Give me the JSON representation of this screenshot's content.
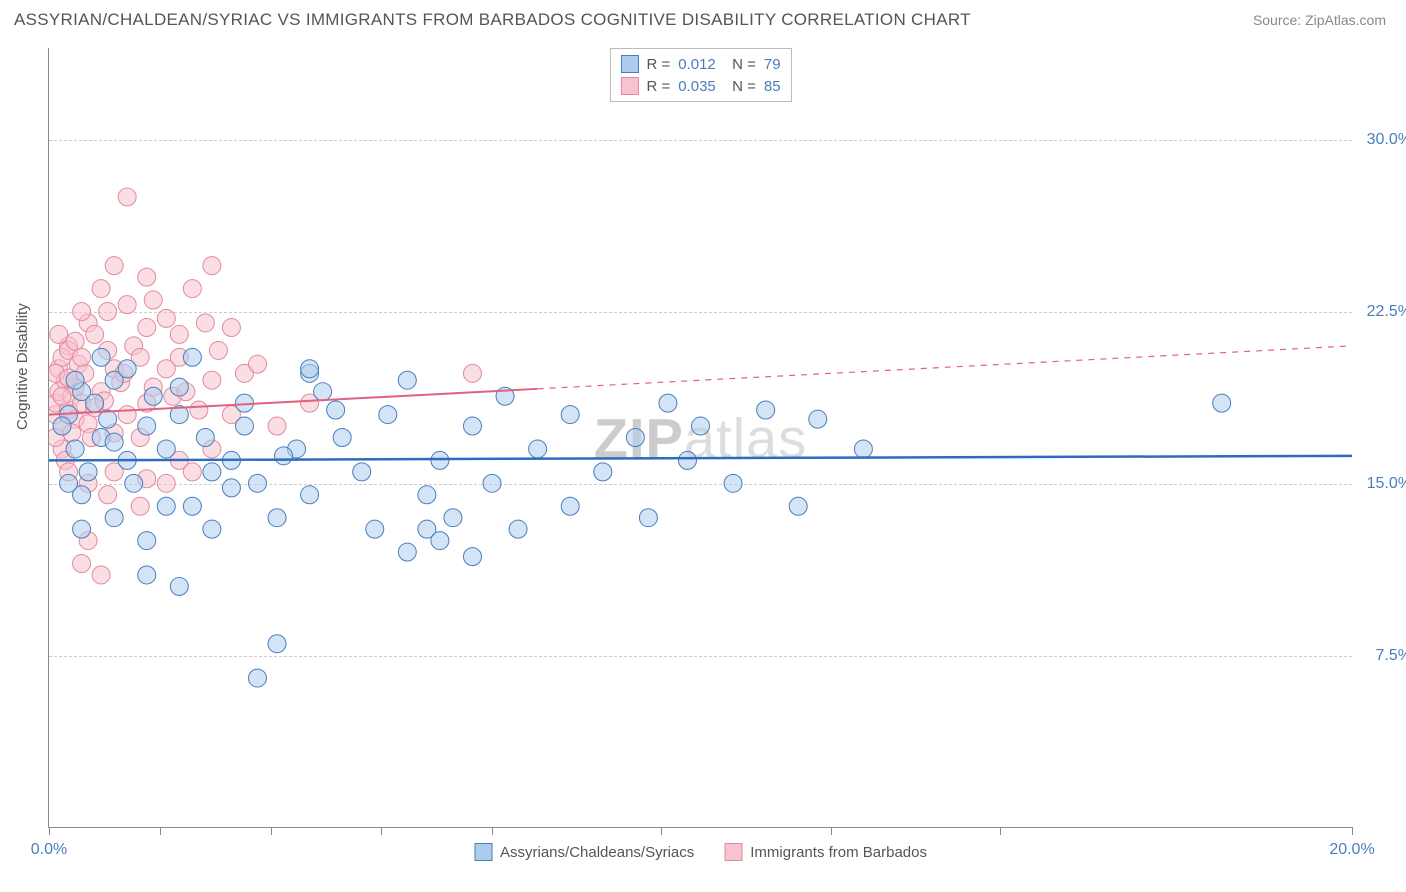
{
  "header": {
    "title": "ASSYRIAN/CHALDEAN/SYRIAC VS IMMIGRANTS FROM BARBADOS COGNITIVE DISABILITY CORRELATION CHART",
    "source": "Source: ZipAtlas.com"
  },
  "chart": {
    "type": "scatter",
    "ylabel": "Cognitive Disability",
    "background_color": "#ffffff",
    "grid_color": "#cccccc",
    "axis_color": "#888888",
    "label_color": "#555555",
    "tick_label_color": "#4a7ebb",
    "title_fontsize": 17,
    "label_fontsize": 15,
    "tick_fontsize": 16,
    "xlim": [
      0,
      20
    ],
    "ylim": [
      0,
      34
    ],
    "xtick_positions_pct": [
      0,
      8.5,
      17,
      25.5,
      34,
      47,
      60,
      73,
      100
    ],
    "xtick_labels": {
      "0": "0.0%",
      "100": "20.0%"
    },
    "yticks": [
      {
        "value": 7.5,
        "label": "7.5%"
      },
      {
        "value": 15.0,
        "label": "15.0%"
      },
      {
        "value": 22.5,
        "label": "22.5%"
      },
      {
        "value": 30.0,
        "label": "30.0%"
      }
    ],
    "watermark": {
      "prefix": "ZIP",
      "suffix": "atlas"
    },
    "series": [
      {
        "name": "Assyrians/Chaldeans/Syriacs",
        "fill_color": "#aecdee",
        "stroke_color": "#4a7ebb",
        "fill_opacity": 0.55,
        "marker_radius": 9,
        "R": "0.012",
        "N": "79",
        "trend": {
          "y_start": 16.0,
          "y_end": 16.2,
          "solid_until_x": 20,
          "color": "#2e6bbd",
          "width": 2.5
        },
        "points": [
          [
            0.3,
            18.0
          ],
          [
            0.2,
            17.5
          ],
          [
            0.5,
            19.0
          ],
          [
            0.4,
            16.5
          ],
          [
            0.6,
            15.5
          ],
          [
            0.8,
            17.0
          ],
          [
            0.5,
            14.5
          ],
          [
            0.7,
            18.5
          ],
          [
            1.0,
            19.5
          ],
          [
            1.2,
            16.0
          ],
          [
            1.5,
            17.5
          ],
          [
            1.0,
            13.5
          ],
          [
            1.3,
            15.0
          ],
          [
            1.8,
            16.5
          ],
          [
            2.0,
            18.0
          ],
          [
            2.2,
            14.0
          ],
          [
            2.5,
            15.5
          ],
          [
            2.0,
            19.2
          ],
          [
            2.4,
            17.0
          ],
          [
            2.8,
            16.0
          ],
          [
            3.0,
            18.5
          ],
          [
            1.5,
            12.5
          ],
          [
            1.8,
            14.0
          ],
          [
            3.2,
            15.0
          ],
          [
            3.5,
            13.5
          ],
          [
            3.0,
            17.5
          ],
          [
            3.8,
            16.5
          ],
          [
            4.0,
            14.5
          ],
          [
            4.2,
            19.0
          ],
          [
            4.5,
            17.0
          ],
          [
            1.2,
            20.0
          ],
          [
            0.8,
            20.5
          ],
          [
            4.8,
            15.5
          ],
          [
            5.0,
            13.0
          ],
          [
            5.2,
            18.0
          ],
          [
            5.5,
            19.5
          ],
          [
            5.8,
            14.5
          ],
          [
            6.0,
            16.0
          ],
          [
            4.0,
            19.8
          ],
          [
            6.2,
            13.5
          ],
          [
            6.5,
            17.5
          ],
          [
            6.8,
            15.0
          ],
          [
            7.0,
            18.8
          ],
          [
            5.5,
            12.0
          ],
          [
            5.8,
            13.0
          ],
          [
            6.0,
            12.5
          ],
          [
            3.5,
            8.0
          ],
          [
            3.2,
            6.5
          ],
          [
            2.0,
            10.5
          ],
          [
            1.5,
            11.0
          ],
          [
            2.5,
            13.0
          ],
          [
            1.0,
            16.8
          ],
          [
            0.5,
            13.0
          ],
          [
            0.3,
            15.0
          ],
          [
            2.2,
            20.5
          ],
          [
            4.0,
            20.0
          ],
          [
            7.5,
            16.5
          ],
          [
            8.0,
            18.0
          ],
          [
            8.5,
            15.5
          ],
          [
            9.0,
            17.0
          ],
          [
            9.5,
            18.5
          ],
          [
            9.8,
            16.0
          ],
          [
            10.0,
            17.5
          ],
          [
            10.5,
            15.0
          ],
          [
            11.0,
            18.2
          ],
          [
            11.5,
            14.0
          ],
          [
            11.8,
            17.8
          ],
          [
            12.5,
            16.5
          ],
          [
            9.2,
            13.5
          ],
          [
            8.0,
            14.0
          ],
          [
            7.2,
            13.0
          ],
          [
            6.5,
            11.8
          ],
          [
            18.0,
            18.5
          ],
          [
            0.9,
            17.8
          ],
          [
            1.6,
            18.8
          ],
          [
            2.8,
            14.8
          ],
          [
            3.6,
            16.2
          ],
          [
            4.4,
            18.2
          ],
          [
            0.4,
            19.5
          ]
        ]
      },
      {
        "name": "Immigrants from Barbados",
        "fill_color": "#f7c3ce",
        "stroke_color": "#e28a9d",
        "fill_opacity": 0.55,
        "marker_radius": 9,
        "R": "0.035",
        "N": "85",
        "trend": {
          "y_start": 18.0,
          "y_end": 21.0,
          "solid_until_x": 7.5,
          "color": "#e2617f",
          "width": 2
        },
        "points": [
          [
            0.1,
            18.0
          ],
          [
            0.1,
            18.5
          ],
          [
            0.15,
            19.0
          ],
          [
            0.2,
            17.5
          ],
          [
            0.15,
            20.0
          ],
          [
            0.2,
            16.5
          ],
          [
            0.25,
            19.5
          ],
          [
            0.3,
            18.2
          ],
          [
            0.1,
            17.0
          ],
          [
            0.3,
            21.0
          ],
          [
            0.2,
            20.5
          ],
          [
            0.35,
            18.8
          ],
          [
            0.1,
            19.8
          ],
          [
            0.4,
            17.8
          ],
          [
            0.25,
            16.0
          ],
          [
            0.3,
            20.8
          ],
          [
            0.15,
            21.5
          ],
          [
            0.4,
            19.2
          ],
          [
            0.2,
            18.8
          ],
          [
            0.45,
            20.2
          ],
          [
            0.35,
            17.2
          ],
          [
            0.5,
            18.5
          ],
          [
            0.3,
            19.6
          ],
          [
            0.6,
            17.6
          ],
          [
            0.4,
            21.2
          ],
          [
            0.55,
            19.8
          ],
          [
            0.5,
            20.5
          ],
          [
            0.7,
            18.3
          ],
          [
            0.6,
            22.0
          ],
          [
            0.8,
            19.0
          ],
          [
            0.65,
            17.0
          ],
          [
            0.9,
            20.8
          ],
          [
            0.7,
            21.5
          ],
          [
            0.85,
            18.6
          ],
          [
            1.0,
            20.0
          ],
          [
            0.9,
            22.5
          ],
          [
            1.1,
            19.4
          ],
          [
            0.8,
            23.5
          ],
          [
            1.2,
            18.0
          ],
          [
            1.0,
            17.2
          ],
          [
            1.3,
            21.0
          ],
          [
            1.15,
            19.8
          ],
          [
            1.4,
            20.5
          ],
          [
            1.2,
            22.8
          ],
          [
            1.5,
            18.5
          ],
          [
            1.0,
            24.5
          ],
          [
            1.6,
            19.2
          ],
          [
            1.4,
            17.0
          ],
          [
            1.8,
            20.0
          ],
          [
            1.5,
            21.8
          ],
          [
            1.9,
            18.8
          ],
          [
            1.6,
            23.0
          ],
          [
            2.0,
            20.5
          ],
          [
            0.5,
            22.5
          ],
          [
            2.1,
            19.0
          ],
          [
            1.8,
            22.2
          ],
          [
            2.3,
            18.2
          ],
          [
            2.0,
            21.5
          ],
          [
            2.5,
            19.5
          ],
          [
            2.2,
            23.5
          ],
          [
            2.6,
            20.8
          ],
          [
            1.5,
            24.0
          ],
          [
            2.8,
            18.0
          ],
          [
            2.4,
            22.0
          ],
          [
            3.0,
            19.8
          ],
          [
            2.5,
            24.5
          ],
          [
            3.2,
            20.2
          ],
          [
            2.8,
            21.8
          ],
          [
            1.2,
            27.5
          ],
          [
            0.6,
            15.0
          ],
          [
            0.9,
            14.5
          ],
          [
            1.0,
            15.5
          ],
          [
            1.4,
            14.0
          ],
          [
            1.5,
            15.2
          ],
          [
            0.5,
            11.5
          ],
          [
            0.8,
            11.0
          ],
          [
            0.6,
            12.5
          ],
          [
            1.8,
            15.0
          ],
          [
            2.0,
            16.0
          ],
          [
            2.2,
            15.5
          ],
          [
            2.5,
            16.5
          ],
          [
            3.5,
            17.5
          ],
          [
            4.0,
            18.5
          ],
          [
            6.5,
            19.8
          ],
          [
            0.3,
            15.5
          ]
        ]
      }
    ]
  }
}
